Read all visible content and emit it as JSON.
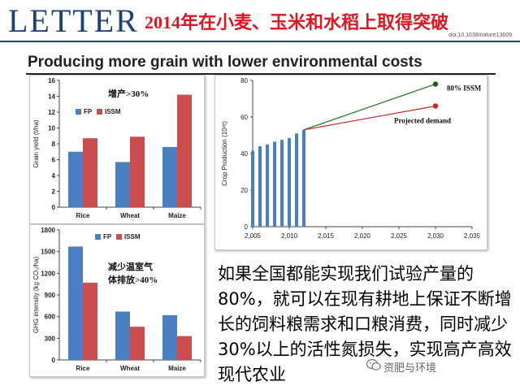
{
  "header": {
    "journal": "LETTER",
    "headline": "2014年在小麦、玉米和水稻上取得突破",
    "doi": "doi:10.1038/nature13609",
    "subtitle": "Producing more grain with lower environmental costs"
  },
  "text_block": "如果全国都能实现我们试验产量的80%，就可以在现有耕地上保证不断增长的饲料粮需求和口粮消费，同时减少30%以上的活性氮损失，实现高产高效现代农业",
  "watermark": "资肥与环境",
  "colors": {
    "fp": "#4b7fc4",
    "issm": "#cc4d4d",
    "headline": "#e0151f",
    "letter": "#1d3f7a",
    "issm_line": "#2e7d32",
    "demand_line": "#d32f2f"
  },
  "chart_data": [
    {
      "id": "grain-yield",
      "type": "bar",
      "ylabel": "Grain yield (t/ha)",
      "ylim": [
        0,
        16
      ],
      "yticks": [
        "0",
        "2",
        "4",
        "6",
        "8",
        "10",
        "12",
        "14",
        "16"
      ],
      "categories": [
        "Rice",
        "Wheat",
        "Maize"
      ],
      "series": [
        {
          "name": "FP",
          "values": [
            7.0,
            5.7,
            7.6
          ]
        },
        {
          "name": "ISSM",
          "values": [
            8.7,
            8.9,
            14.2
          ]
        }
      ],
      "annotation": "增产>30%",
      "legend": "top-left"
    },
    {
      "id": "ghg-intensity",
      "type": "bar",
      "ylabel": "GHG intensity (kg CO₂/ha)",
      "ylim": [
        0,
        1800
      ],
      "yticks": [
        "0",
        "300",
        "600",
        "900",
        "1200",
        "1500",
        "1800"
      ],
      "categories": [
        "Rice",
        "Wheat",
        "Maize"
      ],
      "series": [
        {
          "name": "FP",
          "values": [
            1570,
            670,
            620
          ]
        },
        {
          "name": "ISSM",
          "values": [
            1070,
            460,
            330
          ]
        }
      ],
      "annotation": [
        "减少温室气",
        "体排放>40%"
      ],
      "legend": "top"
    },
    {
      "id": "crop-production",
      "type": "bar",
      "ylabel": "Crop Production (10⁸t)",
      "ylim": [
        0,
        80
      ],
      "yticks": [
        "0",
        "20",
        "40",
        "60",
        "80"
      ],
      "xlim": [
        2005,
        2035
      ],
      "xticks": [
        "2,005",
        "2,010",
        "2,015",
        "2,020",
        "2,025",
        "2,030",
        "2,035"
      ],
      "bars": {
        "x": [
          2005,
          2006,
          2007,
          2008,
          2009,
          2010,
          2011,
          2012
        ],
        "values": [
          41.5,
          44,
          45,
          46.5,
          47.5,
          48.5,
          51,
          53
        ]
      },
      "lines": [
        {
          "name": "80% ISSM",
          "x": [
            2012,
            2030
          ],
          "y": [
            53,
            78
          ],
          "label": "80% ISSM"
        },
        {
          "name": "Projected demand",
          "x": [
            2012,
            2030
          ],
          "y": [
            53,
            66
          ],
          "label": "Projected demand"
        }
      ]
    }
  ]
}
